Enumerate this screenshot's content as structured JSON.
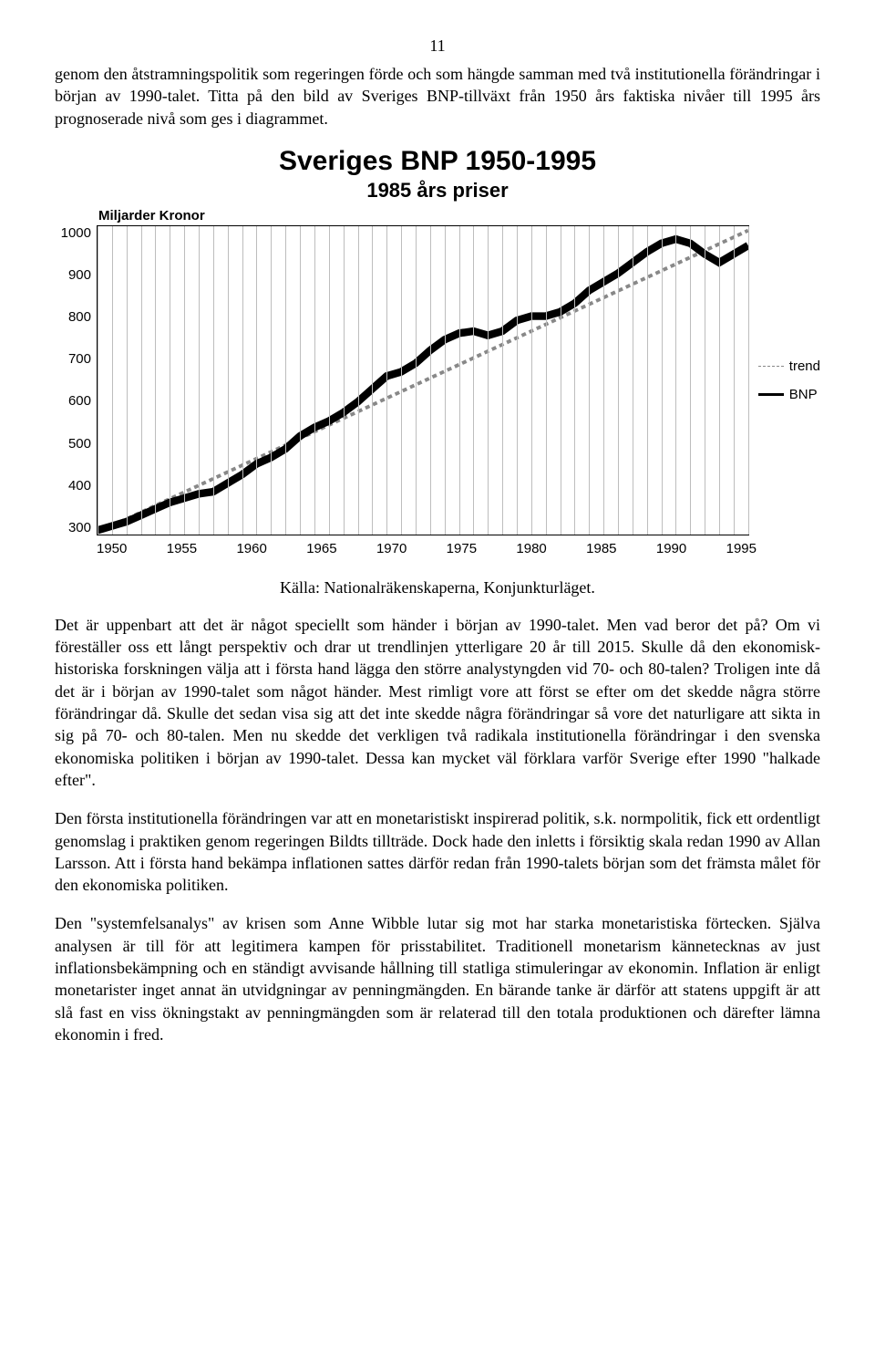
{
  "page_number": "11",
  "para1": "genom den åtstramningspolitik som regeringen förde och som hängde samman med två institutionella förändringar i början av 1990-talet. Titta på den bild av Sveriges BNP-tillväxt från 1950 års faktiska nivåer till 1995 års prognoserade nivå som ges i diagrammet.",
  "chart": {
    "type": "line",
    "title": "Sveriges BNP 1950-1995",
    "subtitle": "1985 års priser",
    "y_axis_title": "Miljarder Kronor",
    "ylim": [
      280,
      1000
    ],
    "yticks": [
      300,
      400,
      500,
      600,
      700,
      800,
      900,
      1000
    ],
    "xlim": [
      1950,
      1995
    ],
    "xticks": [
      1950,
      1955,
      1960,
      1965,
      1970,
      1975,
      1980,
      1985,
      1990,
      1995
    ],
    "grid_color": "#bdbdbd",
    "border_color": "#000000",
    "background_color": "#ffffff",
    "series": {
      "bnp": {
        "label": "BNP",
        "color": "#000000",
        "line_width": 2.8,
        "dash": "none",
        "points": [
          [
            1950,
            290
          ],
          [
            1951,
            300
          ],
          [
            1952,
            310
          ],
          [
            1953,
            325
          ],
          [
            1954,
            340
          ],
          [
            1955,
            355
          ],
          [
            1956,
            365
          ],
          [
            1957,
            375
          ],
          [
            1958,
            380
          ],
          [
            1959,
            400
          ],
          [
            1960,
            420
          ],
          [
            1961,
            445
          ],
          [
            1962,
            460
          ],
          [
            1963,
            480
          ],
          [
            1964,
            510
          ],
          [
            1965,
            530
          ],
          [
            1966,
            545
          ],
          [
            1967,
            565
          ],
          [
            1968,
            590
          ],
          [
            1969,
            620
          ],
          [
            1970,
            650
          ],
          [
            1971,
            660
          ],
          [
            1972,
            680
          ],
          [
            1973,
            710
          ],
          [
            1974,
            735
          ],
          [
            1975,
            750
          ],
          [
            1976,
            755
          ],
          [
            1977,
            745
          ],
          [
            1978,
            755
          ],
          [
            1979,
            780
          ],
          [
            1980,
            790
          ],
          [
            1981,
            790
          ],
          [
            1982,
            800
          ],
          [
            1983,
            820
          ],
          [
            1984,
            850
          ],
          [
            1985,
            870
          ],
          [
            1986,
            890
          ],
          [
            1987,
            915
          ],
          [
            1988,
            940
          ],
          [
            1989,
            960
          ],
          [
            1990,
            970
          ],
          [
            1991,
            960
          ],
          [
            1992,
            935
          ],
          [
            1993,
            915
          ],
          [
            1994,
            935
          ],
          [
            1995,
            955
          ]
        ]
      },
      "trend": {
        "label": "trend",
        "color": "#888888",
        "line_width": 1.3,
        "dash": "5,4",
        "points": [
          [
            1950,
            285
          ],
          [
            1995,
            990
          ]
        ]
      }
    },
    "legend_items": [
      "trend",
      "bnp"
    ],
    "title_fontsize": 30,
    "subtitle_fontsize": 22,
    "axis_fontsize": 15
  },
  "source_line": "Källa: Nationalräkenskaperna, Konjunkturläget.",
  "para2": "Det är uppenbart att det är något speciellt som händer i början av 1990-talet. Men vad beror det på? Om vi föreställer oss ett långt perspektiv och drar ut trendlinjen ytterligare 20 år till 2015. Skulle då den ekonomisk-historiska forskningen välja att i första hand lägga den större analystyngden vid 70- och 80-talen? Troligen inte då det är i början av 1990-talet som något händer. Mest rimligt vore att först se efter om det skedde några större förändringar då. Skulle det sedan visa sig att det inte skedde några förändringar så vore det naturligare att sikta in sig på 70- och 80-talen. Men nu skedde det verkligen två radikala institutionella förändringar i den svenska ekonomiska politiken i början av 1990-talet. Dessa kan mycket väl förklara varför Sverige efter 1990 \"halkade efter\".",
  "para3": "Den första institutionella förändringen var att en monetaristiskt inspirerad politik, s.k. normpolitik, fick ett ordentligt genomslag i praktiken genom regeringen Bildts tillträde. Dock hade den inletts i försiktig skala redan 1990 av Allan Larsson. Att i första hand bekämpa inflationen sattes därför redan från 1990-talets början som det främsta målet för den ekonomiska politiken.",
  "para4": "Den \"systemfelsanalys\" av krisen som Anne Wibble lutar sig mot har starka monetaristiska förtecken. Själva analysen är till för att legitimera kampen för prisstabilitet. Traditionell monetarism kännetecknas av just inflationsbekämpning och en ständigt avvisande hållning till statliga stimuleringar av ekonomin. Inflation är enligt monetarister inget annat än utvidgningar av penningmängden. En bärande tanke är därför att statens uppgift är att slå fast en viss ökningstakt av penningmängden som är relaterad till den totala produktionen och därefter lämna ekonomin i fred."
}
